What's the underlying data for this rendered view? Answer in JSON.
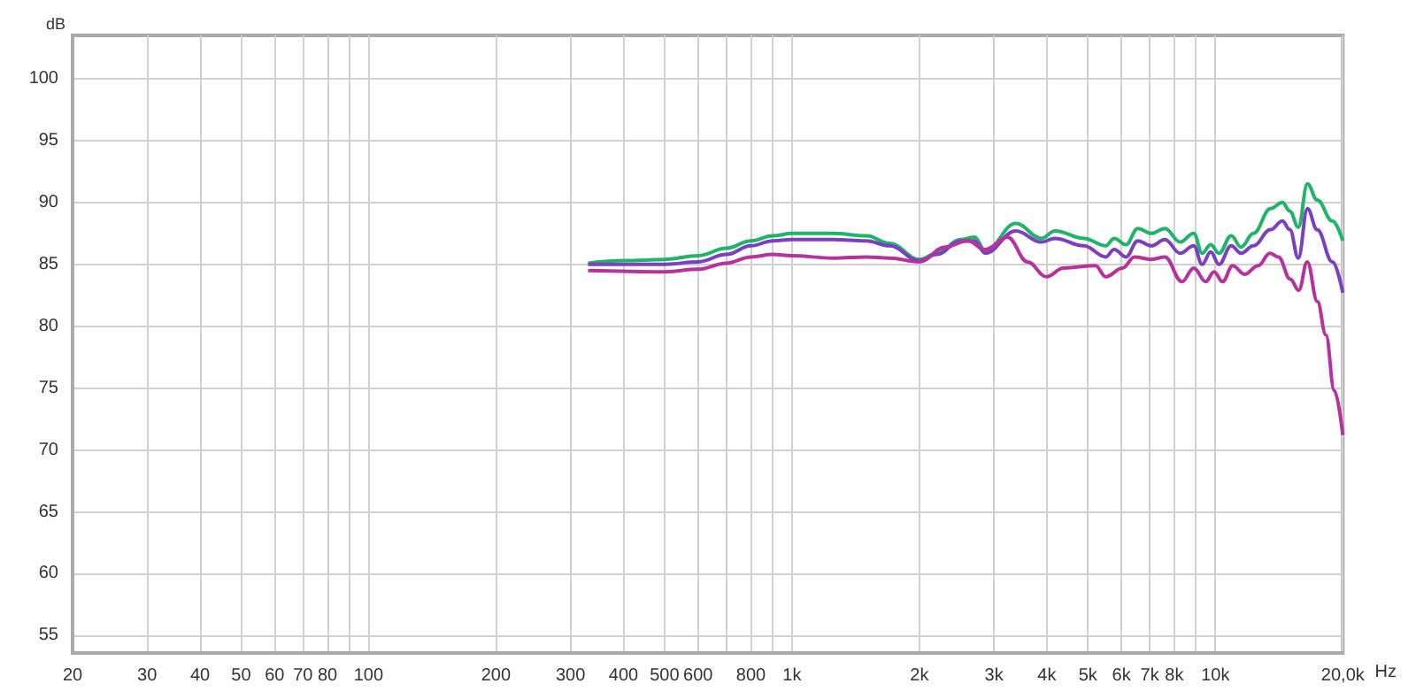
{
  "chart_data": {
    "type": "line",
    "xlabel": "Hz",
    "ylabel": "dB",
    "log": "x",
    "grid": true,
    "marker": "none",
    "xlim": [
      20,
      20000
    ],
    "ylim": [
      53.6,
      103.5
    ],
    "xticks": [
      20,
      30,
      40,
      50,
      60,
      70,
      80,
      {
        "value": 90,
        "label": null
      },
      100,
      200,
      300,
      400,
      500,
      600,
      {
        "value": 700,
        "label": null
      },
      800,
      {
        "value": 900,
        "label": null
      },
      {
        "value": 1000,
        "label": "1k"
      },
      {
        "value": 2000,
        "label": "2k"
      },
      {
        "value": 3000,
        "label": "3k"
      },
      {
        "value": 4000,
        "label": "4k"
      },
      {
        "value": 5000,
        "label": "5k"
      },
      {
        "value": 6000,
        "label": "6k"
      },
      {
        "value": 7000,
        "label": "7k"
      },
      {
        "value": 8000,
        "label": "8k"
      },
      {
        "value": 9000,
        "label": null
      },
      {
        "value": 10000,
        "label": "10k"
      },
      {
        "value": 20000,
        "label": "20,0k"
      }
    ],
    "yticks": [
      55,
      60,
      65,
      70,
      75,
      80,
      85,
      90,
      95,
      100
    ],
    "series": [
      {
        "color": "#1fb46a",
        "x": [
          330,
          400,
          500,
          600,
          700,
          800,
          900,
          1000,
          1250,
          1500,
          1700,
          2000,
          2200,
          2500,
          2700,
          2860,
          3380,
          3880,
          4180,
          4890,
          5510,
          5770,
          6150,
          6560,
          7060,
          7600,
          8260,
          8890,
          9310,
          9750,
          10200,
          10900,
          11500,
          12300,
          13500,
          14400,
          15000,
          15700,
          16500,
          17400,
          18900,
          20000
        ],
        "values": [
          85.1,
          85.3,
          85.4,
          85.7,
          86.3,
          86.9,
          87.3,
          87.5,
          87.5,
          87.3,
          86.7,
          85.4,
          85.9,
          87.0,
          87.2,
          86.1,
          88.3,
          87.1,
          87.7,
          87.1,
          86.5,
          87.1,
          86.6,
          87.9,
          87.5,
          87.9,
          86.8,
          87.5,
          85.9,
          86.6,
          85.9,
          87.3,
          86.4,
          87.5,
          89.5,
          90.0,
          89.3,
          88.0,
          91.5,
          90.2,
          88.5,
          86.9
        ]
      },
      {
        "color": "#7b3fbf",
        "x": [
          330,
          400,
          500,
          600,
          700,
          800,
          900,
          1000,
          1250,
          1500,
          1700,
          2000,
          2200,
          2500,
          2700,
          2860,
          3380,
          3880,
          4180,
          4890,
          5510,
          5770,
          6150,
          6560,
          7060,
          7600,
          8260,
          8890,
          9310,
          9750,
          10200,
          10900,
          11500,
          12300,
          13500,
          14400,
          15000,
          15700,
          16500,
          17400,
          18900,
          20000
        ],
        "values": [
          85.0,
          85.0,
          85.0,
          85.2,
          85.8,
          86.5,
          86.9,
          87.0,
          87.0,
          86.9,
          86.5,
          85.3,
          85.8,
          86.9,
          86.9,
          85.9,
          87.7,
          86.8,
          87.1,
          86.5,
          85.6,
          86.2,
          85.6,
          86.9,
          86.5,
          87.0,
          85.9,
          86.5,
          85.0,
          86.0,
          85.0,
          86.5,
          85.9,
          86.5,
          87.8,
          88.5,
          87.8,
          85.5,
          89.5,
          87.8,
          85.2,
          82.7
        ]
      },
      {
        "color": "#b8329e",
        "x": [
          330,
          500,
          600,
          700,
          800,
          900,
          1000,
          1250,
          1500,
          1700,
          2000,
          2300,
          2600,
          2860,
          3230,
          3600,
          3990,
          4380,
          5210,
          5510,
          6040,
          6440,
          7060,
          7600,
          8340,
          8890,
          9490,
          9930,
          10400,
          10990,
          11720,
          12620,
          13460,
          14090,
          15030,
          15740,
          16480,
          17420,
          18240,
          19100,
          20000
        ],
        "values": [
          84.5,
          84.4,
          84.6,
          85.1,
          85.6,
          85.8,
          85.7,
          85.5,
          85.6,
          85.5,
          85.2,
          86.4,
          86.9,
          86.2,
          87.2,
          85.2,
          84.0,
          84.7,
          84.9,
          84.0,
          84.7,
          85.6,
          85.4,
          85.6,
          83.6,
          84.7,
          83.6,
          84.4,
          83.6,
          84.9,
          84.2,
          84.9,
          85.9,
          85.6,
          83.8,
          82.9,
          85.2,
          82.0,
          79.3,
          74.8,
          71.2
        ]
      }
    ]
  }
}
